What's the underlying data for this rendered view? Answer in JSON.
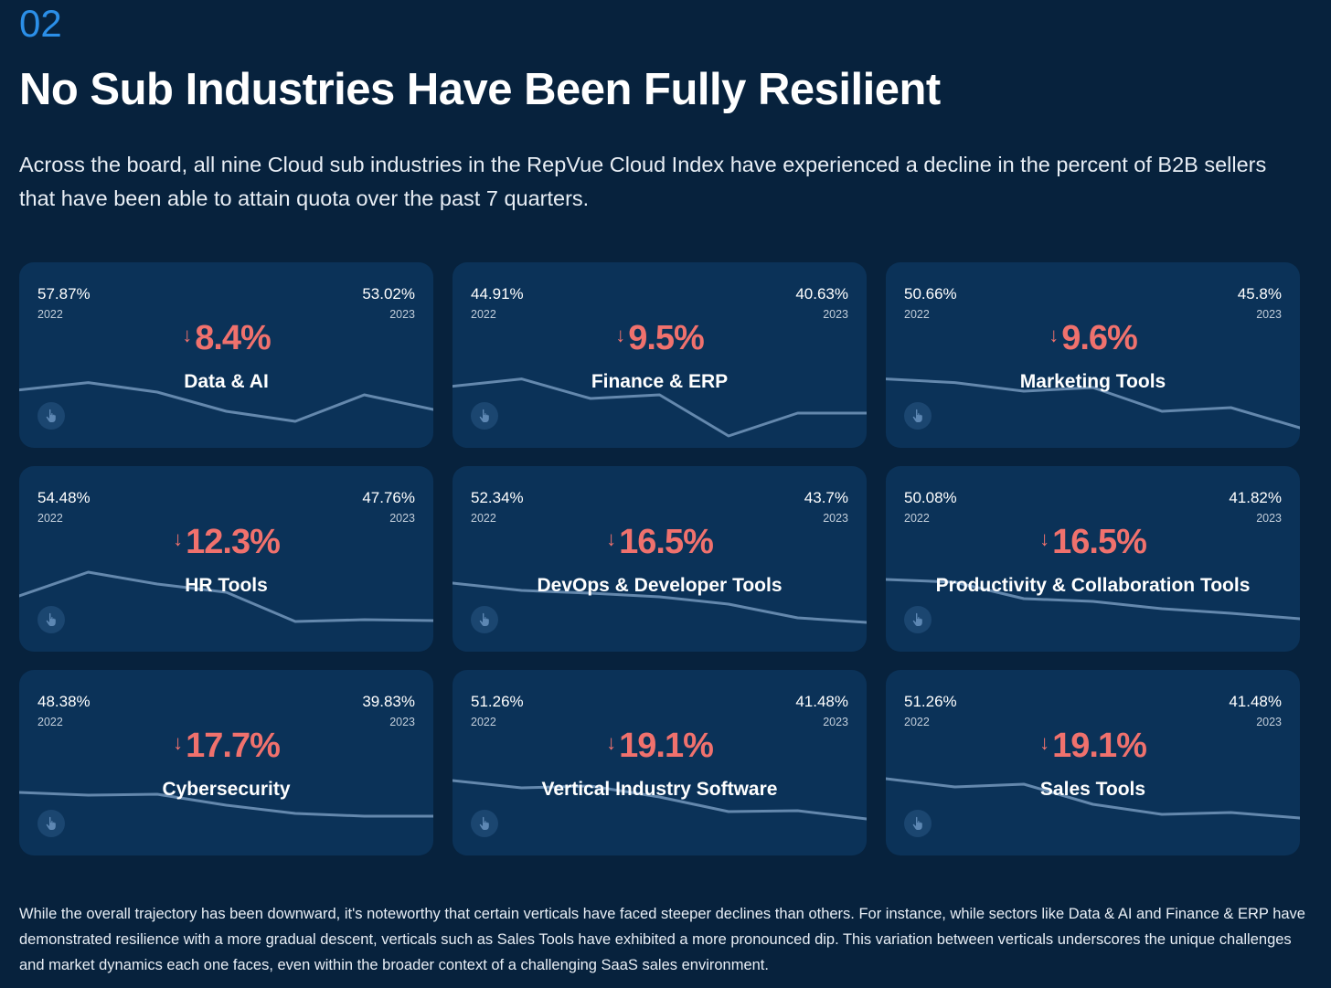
{
  "section": {
    "number": "02"
  },
  "header": {
    "title": "No Sub Industries Have Been Fully Resilient"
  },
  "intro": {
    "text": "Across the board, all nine Cloud sub industries in the RepVue Cloud Index have experienced a decline in the percent of B2B sellers that have been able to attain quota over the past 7 quarters."
  },
  "colors": {
    "background": "#07223d",
    "card": "#0b3258",
    "accent_blue": "#2b8fe8",
    "decline_red": "#f0716d",
    "sparkline": "#6488ad"
  },
  "cards": [
    {
      "name": "Data & AI",
      "start_value": "57.87%",
      "start_year": "2022",
      "end_value": "53.02%",
      "end_year": "2023",
      "change": "8.4%",
      "change_icon": "arrow-down-icon",
      "tap_icon": "hand-pointer-icon"
    },
    {
      "name": "Finance & ERP",
      "start_value": "44.91%",
      "start_year": "2022",
      "end_value": "40.63%",
      "end_year": "2023",
      "change": "9.5%",
      "change_icon": "arrow-down-icon",
      "tap_icon": "hand-pointer-icon"
    },
    {
      "name": "Marketing Tools",
      "start_value": "50.66%",
      "start_year": "2022",
      "end_value": "45.8%",
      "end_year": "2023",
      "change": "9.6%",
      "change_icon": "arrow-down-icon",
      "tap_icon": "hand-pointer-icon"
    },
    {
      "name": "HR Tools",
      "start_value": "54.48%",
      "start_year": "2022",
      "end_value": "47.76%",
      "end_year": "2023",
      "change": "12.3%",
      "change_icon": "arrow-down-icon",
      "tap_icon": "hand-pointer-icon"
    },
    {
      "name": "DevOps & Developer Tools",
      "start_value": "52.34%",
      "start_year": "2022",
      "end_value": "43.7%",
      "end_year": "2023",
      "change": "16.5%",
      "change_icon": "arrow-down-icon",
      "tap_icon": "hand-pointer-icon"
    },
    {
      "name": "Productivity & Collaboration Tools",
      "start_value": "50.08%",
      "start_year": "2022",
      "end_value": "41.82%",
      "end_year": "2023",
      "change": "16.5%",
      "change_icon": "arrow-down-icon",
      "tap_icon": "hand-pointer-icon"
    },
    {
      "name": "Cybersecurity",
      "start_value": "48.38%",
      "start_year": "2022",
      "end_value": "39.83%",
      "end_year": "2023",
      "change": "17.7%",
      "change_icon": "arrow-down-icon",
      "tap_icon": "hand-pointer-icon"
    },
    {
      "name": "Vertical Industry Software",
      "start_value": "51.26%",
      "start_year": "2022",
      "end_value": "41.48%",
      "end_year": "2023",
      "change": "19.1%",
      "change_icon": "arrow-down-icon",
      "tap_icon": "hand-pointer-icon"
    },
    {
      "name": "Sales Tools",
      "start_value": "51.26%",
      "start_year": "2022",
      "end_value": "41.48%",
      "end_year": "2023",
      "change": "19.1%",
      "change_icon": "arrow-down-icon",
      "tap_icon": "hand-pointer-icon"
    }
  ],
  "chart_data": {
    "type": "line",
    "series": [
      {
        "values": [
          0.52,
          0.92,
          0.4,
          -0.65,
          -1.2,
          0.25,
          -0.55
        ]
      },
      {
        "values": [
          0.72,
          1.12,
          0.05,
          0.25,
          -2.0,
          -0.75,
          -0.75
        ]
      },
      {
        "values": [
          1.12,
          0.92,
          0.45,
          0.65,
          -0.65,
          -0.45,
          -1.55
        ]
      },
      {
        "values": [
          0.4,
          1.7,
          1.05,
          0.6,
          -1.0,
          -0.9,
          -0.95
        ]
      },
      {
        "values": [
          1.1,
          0.7,
          0.55,
          0.35,
          -0.05,
          -0.8,
          -1.05
        ]
      },
      {
        "values": [
          1.3,
          1.15,
          0.25,
          0.1,
          -0.3,
          -0.55,
          -0.85
        ]
      },
      {
        "values": [
          0.8,
          0.65,
          0.7,
          0.1,
          -0.35,
          -0.5,
          -0.5
        ]
      },
      {
        "values": [
          1.45,
          1.05,
          1.15,
          0.55,
          -0.25,
          -0.2,
          -0.65
        ]
      },
      {
        "values": [
          1.55,
          1.1,
          1.25,
          0.15,
          -0.4,
          -0.3,
          -0.6
        ]
      }
    ]
  },
  "outro": {
    "text": "While the overall trajectory has been downward, it's noteworthy that certain verticals have faced steeper declines than others. For instance, while sectors like Data & AI and Finance & ERP have demonstrated resilience with a more gradual descent, verticals such as Sales Tools have exhibited a more pronounced dip. This variation between verticals underscores the unique challenges and market dynamics each one faces, even within the broader context of a challenging SaaS sales environment."
  }
}
